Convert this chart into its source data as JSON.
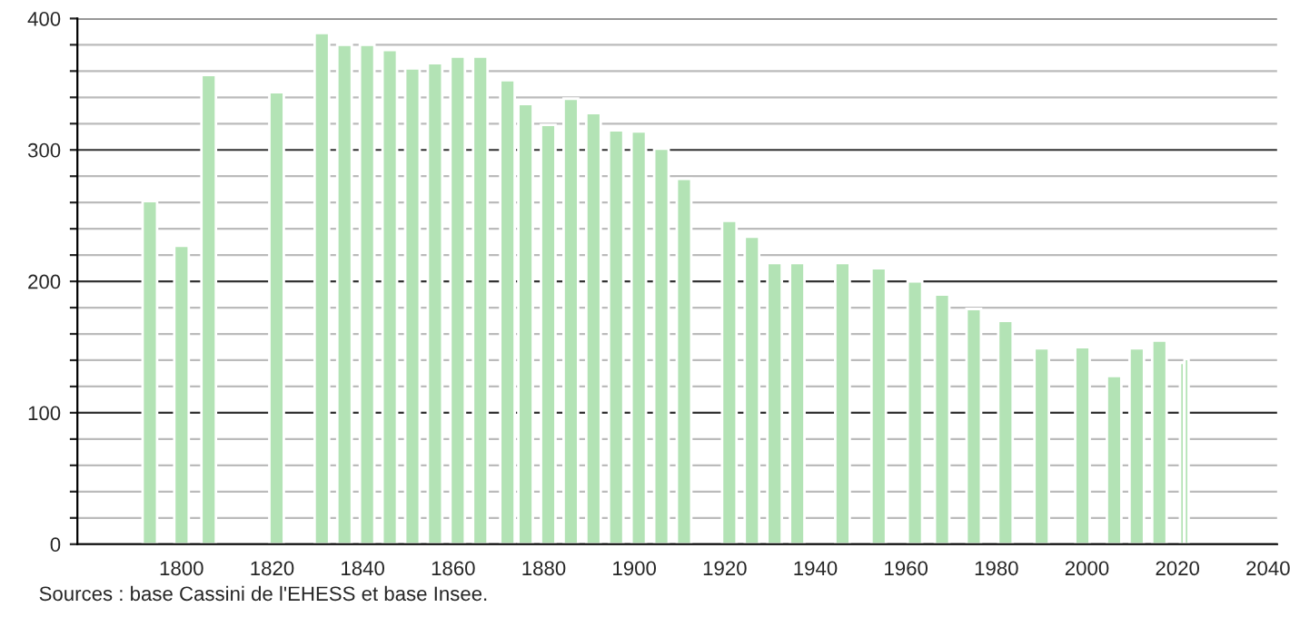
{
  "chart_data": {
    "type": "bar",
    "x": [
      1793,
      1800,
      1806,
      1821,
      1831,
      1836,
      1841,
      1846,
      1851,
      1856,
      1861,
      1866,
      1872,
      1876,
      1881,
      1886,
      1891,
      1896,
      1901,
      1906,
      1911,
      1921,
      1926,
      1931,
      1936,
      1946,
      1954,
      1962,
      1968,
      1975,
      1982,
      1990,
      1999,
      2006,
      2011,
      2016,
      2021,
      2022
    ],
    "values": [
      261,
      227,
      357,
      344,
      389,
      380,
      380,
      376,
      362,
      366,
      371,
      371,
      353,
      335,
      319,
      339,
      328,
      315,
      314,
      301,
      278,
      246,
      234,
      214,
      214,
      214,
      210,
      200,
      190,
      179,
      170,
      149,
      150,
      128,
      149,
      155,
      138,
      141
    ],
    "color": "#b3e3b5",
    "xlim": [
      1777,
      2042
    ],
    "xticks": [
      1800,
      1820,
      1840,
      1860,
      1880,
      1900,
      1920,
      1940,
      1960,
      1980,
      2000,
      2020,
      2040
    ],
    "ylim": [
      0,
      400
    ],
    "yticks": [
      0,
      {
        "value": 20,
        "label": null
      },
      {
        "value": 40,
        "label": null
      },
      {
        "value": 60,
        "label": null
      },
      {
        "value": 80,
        "label": null
      },
      100,
      {
        "value": 120,
        "label": null
      },
      {
        "value": 140,
        "label": null
      },
      {
        "value": 160,
        "label": null
      },
      {
        "value": 180,
        "label": null
      },
      200,
      {
        "value": 220,
        "label": null
      },
      {
        "value": 240,
        "label": null
      },
      {
        "value": 260,
        "label": null
      },
      {
        "value": 280,
        "label": null
      },
      300,
      {
        "value": 320,
        "label": null
      },
      {
        "value": 340,
        "label": null
      },
      {
        "value": 360,
        "label": null
      },
      {
        "value": 380,
        "label": null
      },
      400
    ],
    "grid": "y",
    "annotations": [
      "Sources : base Cassini de l'EHESS et base Insee."
    ]
  }
}
